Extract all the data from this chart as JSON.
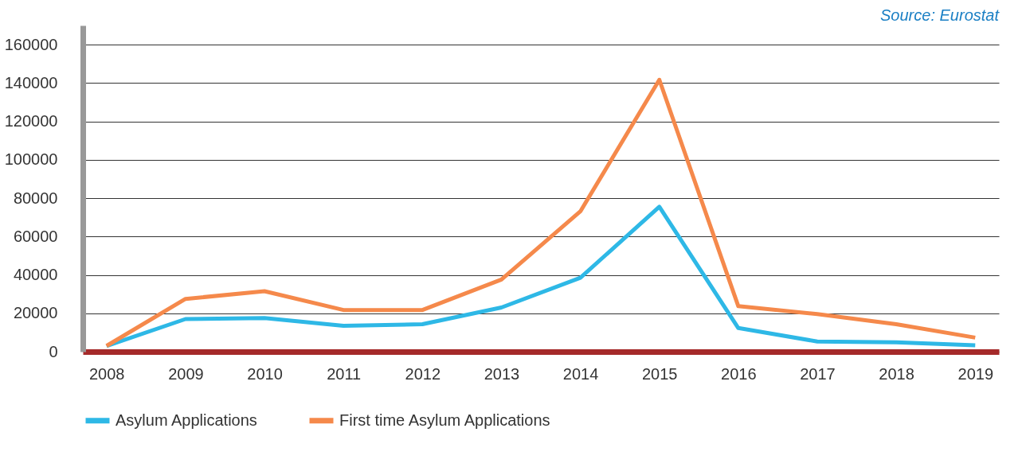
{
  "chart_data": {
    "type": "line",
    "categories": [
      "2008",
      "2009",
      "2010",
      "2011",
      "2012",
      "2013",
      "2014",
      "2015",
      "2016",
      "2017",
      "2018",
      "2019"
    ],
    "series": [
      {
        "name": "Asylum Applications",
        "color": "#2eb8e6",
        "values": [
          3000,
          17000,
          17500,
          13500,
          14300,
          23000,
          38500,
          75500,
          12300,
          5300,
          4900,
          3300
        ]
      },
      {
        "name": "First time Asylum Applications",
        "color": "#f5894b",
        "values": [
          3000,
          27500,
          31500,
          21700,
          21700,
          37600,
          73100,
          141700,
          23700,
          19600,
          14300,
          7300
        ]
      }
    ],
    "ylim": [
      0,
      170000
    ],
    "yticks": [
      0,
      20000,
      40000,
      60000,
      80000,
      100000,
      120000,
      140000,
      160000
    ],
    "grid": "y",
    "legend": "bottom",
    "line_style": "solid",
    "marker": "none",
    "annotations": [
      "Source: Eurostat"
    ]
  }
}
